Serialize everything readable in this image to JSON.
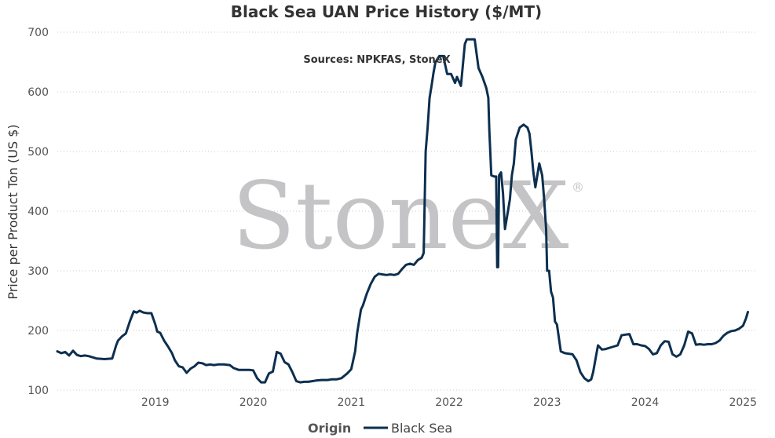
{
  "chart_data": {
    "type": "line",
    "title": "Black Sea UAN Price History ($/MT)",
    "subtitle": "Sources: NPKFAS, StoneX",
    "ylabel": "Price per Product Ton (US $)",
    "xlabel": "",
    "xlim": [
      2018.0,
      2025.15
    ],
    "ylim": [
      100,
      700
    ],
    "grid": true,
    "legend_title": "Origin",
    "legend_position": "bottom",
    "watermark": "StoneX",
    "watermark_mark": "®",
    "x_ticks": [
      {
        "value": 2019,
        "label": "2019"
      },
      {
        "value": 2020,
        "label": "2020"
      },
      {
        "value": 2021,
        "label": "2021"
      },
      {
        "value": 2022,
        "label": "2022"
      },
      {
        "value": 2023,
        "label": "2023"
      },
      {
        "value": 2024,
        "label": "2024"
      },
      {
        "value": 2025,
        "label": "2025"
      }
    ],
    "y_ticks": [
      {
        "value": 100,
        "label": "100"
      },
      {
        "value": 200,
        "label": "200"
      },
      {
        "value": 300,
        "label": "300"
      },
      {
        "value": 400,
        "label": "400"
      },
      {
        "value": 500,
        "label": "500"
      },
      {
        "value": 600,
        "label": "600"
      },
      {
        "value": 700,
        "label": "700"
      }
    ],
    "series": [
      {
        "name": "Black Sea",
        "color": "#0d2f4f",
        "x": [
          2018.0,
          2018.04,
          2018.08,
          2018.12,
          2018.16,
          2018.2,
          2018.24,
          2018.28,
          2018.32,
          2018.4,
          2018.48,
          2018.56,
          2018.6,
          2018.62,
          2018.66,
          2018.7,
          2018.74,
          2018.78,
          2018.81,
          2018.84,
          2018.88,
          2018.92,
          2018.96,
          2019.0,
          2019.02,
          2019.05,
          2019.09,
          2019.13,
          2019.17,
          2019.2,
          2019.24,
          2019.28,
          2019.32,
          2019.36,
          2019.4,
          2019.44,
          2019.48,
          2019.52,
          2019.56,
          2019.6,
          2019.64,
          2019.7,
          2019.76,
          2019.8,
          2019.85,
          2019.9,
          2019.96,
          2020.0,
          2020.04,
          2020.08,
          2020.12,
          2020.16,
          2020.2,
          2020.24,
          2020.28,
          2020.32,
          2020.36,
          2020.4,
          2020.44,
          2020.48,
          2020.52,
          2020.56,
          2020.6,
          2020.64,
          2020.7,
          2020.76,
          2020.8,
          2020.85,
          2020.9,
          2020.96,
          2021.0,
          2021.04,
          2021.06,
          2021.08,
          2021.1,
          2021.12,
          2021.16,
          2021.2,
          2021.24,
          2021.28,
          2021.32,
          2021.36,
          2021.4,
          2021.44,
          2021.48,
          2021.52,
          2021.56,
          2021.6,
          2021.64,
          2021.68,
          2021.72,
          2021.74,
          2021.76,
          2021.78,
          2021.8,
          2021.82,
          2021.84,
          2021.86,
          2021.88,
          2021.9,
          2021.94,
          2021.98,
          2022.02,
          2022.06,
          2022.08,
          2022.12,
          2022.16,
          2022.18,
          2022.22,
          2022.26,
          2022.3,
          2022.34,
          2022.38,
          2022.4,
          2022.41,
          2022.43,
          2022.46,
          2022.48,
          2022.49,
          2022.5,
          2022.51,
          2022.53,
          2022.55,
          2022.57,
          2022.6,
          2022.62,
          2022.64,
          2022.66,
          2022.68,
          2022.72,
          2022.76,
          2022.8,
          2022.82,
          2022.84,
          2022.86,
          2022.88,
          2022.9,
          2022.92,
          2022.95,
          2022.97,
          2022.99,
          2023.0,
          2023.02,
          2023.04,
          2023.06,
          2023.08,
          2023.1,
          2023.14,
          2023.18,
          2023.22,
          2023.26,
          2023.3,
          2023.34,
          2023.38,
          2023.42,
          2023.45,
          2023.47,
          2023.5,
          2023.52,
          2023.56,
          2023.6,
          2023.64,
          2023.68,
          2023.72,
          2023.76,
          2023.8,
          2023.84,
          2023.88,
          2023.92,
          2023.96,
          2024.0,
          2024.04,
          2024.08,
          2024.12,
          2024.16,
          2024.2,
          2024.24,
          2024.28,
          2024.32,
          2024.36,
          2024.4,
          2024.44,
          2024.48,
          2024.52,
          2024.56,
          2024.6,
          2024.64,
          2024.68,
          2024.72,
          2024.76,
          2024.8,
          2024.84,
          2024.88,
          2024.92,
          2024.96,
          2025.0,
          2025.03,
          2025.05
        ],
        "values": [
          165,
          162,
          164,
          158,
          166,
          159,
          157,
          158,
          157,
          153,
          152,
          153,
          175,
          183,
          190,
          195,
          215,
          232,
          230,
          233,
          230,
          229,
          229,
          210,
          198,
          196,
          183,
          173,
          162,
          150,
          140,
          138,
          129,
          136,
          140,
          146,
          145,
          142,
          143,
          142,
          143,
          143,
          142,
          137,
          134,
          134,
          134,
          133,
          120,
          113,
          113,
          128,
          131,
          164,
          161,
          147,
          143,
          130,
          115,
          113,
          114,
          114,
          115,
          116,
          117,
          117,
          118,
          118,
          120,
          128,
          135,
          165,
          195,
          215,
          235,
          242,
          262,
          278,
          290,
          295,
          294,
          293,
          294,
          293,
          295,
          303,
          310,
          312,
          310,
          318,
          322,
          330,
          500,
          540,
          590,
          610,
          632,
          650,
          655,
          660,
          660,
          630,
          630,
          615,
          625,
          610,
          680,
          688,
          688,
          688,
          640,
          625,
          606,
          590,
          535,
          460,
          458,
          458,
          306,
          306,
          460,
          465,
          430,
          370,
          400,
          420,
          460,
          480,
          520,
          540,
          545,
          540,
          530,
          500,
          465,
          440,
          460,
          480,
          460,
          420,
          370,
          300,
          300,
          265,
          255,
          215,
          210,
          165,
          162,
          161,
          160,
          150,
          130,
          120,
          115,
          118,
          130,
          158,
          175,
          168,
          169,
          171,
          173,
          175,
          192,
          193,
          194,
          177,
          177,
          175,
          174,
          169,
          160,
          162,
          175,
          182,
          181,
          160,
          156,
          160,
          175,
          198,
          195,
          176,
          177,
          176,
          177,
          177,
          179,
          183,
          191,
          196,
          199,
          200,
          203,
          208,
          220,
          231
        ]
      }
    ]
  }
}
